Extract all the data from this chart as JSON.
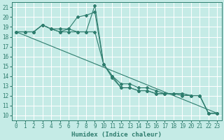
{
  "xlabel": "Humidex (Indice chaleur)",
  "xlim": [
    -0.5,
    23.5
  ],
  "ylim": [
    9.5,
    21.5
  ],
  "xticks": [
    0,
    1,
    2,
    3,
    4,
    5,
    6,
    7,
    8,
    9,
    10,
    11,
    12,
    13,
    14,
    15,
    16,
    17,
    18,
    19,
    20,
    21,
    22,
    23
  ],
  "yticks": [
    10,
    11,
    12,
    13,
    14,
    15,
    16,
    17,
    18,
    19,
    20,
    21
  ],
  "bg_color": "#c5ebe6",
  "grid_color": "#ffffff",
  "line_color": "#2e7d6e",
  "series": [
    {
      "x": [
        0,
        1,
        2,
        3,
        4,
        5,
        6,
        7,
        8,
        9,
        10,
        11,
        12,
        13,
        14,
        15,
        16,
        17,
        18,
        19,
        20,
        21,
        22,
        23
      ],
      "y": [
        18.5,
        18.5,
        18.5,
        19.2,
        18.8,
        18.8,
        18.8,
        18.5,
        18.5,
        21.2,
        15.2,
        13.8,
        12.8,
        12.8,
        12.5,
        12.5,
        12.2,
        12.2,
        12.2,
        12.2,
        12.0,
        12.0,
        10.2,
        10.2
      ]
    },
    {
      "x": [
        0,
        1,
        2,
        3,
        4,
        5,
        6,
        7,
        8,
        9,
        10,
        11,
        12,
        13,
        14,
        15,
        16,
        17,
        18,
        19,
        20,
        21,
        22,
        23
      ],
      "y": [
        18.5,
        18.5,
        18.5,
        19.2,
        18.8,
        18.5,
        18.8,
        20.0,
        20.2,
        20.5,
        15.2,
        14.0,
        13.2,
        13.2,
        12.8,
        12.8,
        12.5,
        12.2,
        12.2,
        12.2,
        12.0,
        12.0,
        10.2,
        10.2
      ]
    },
    {
      "x": [
        0,
        23
      ],
      "y": [
        18.5,
        10.2
      ],
      "no_marker": true
    },
    {
      "x": [
        0,
        1,
        2,
        3,
        4,
        5,
        6,
        7,
        8,
        9,
        10,
        11,
        12,
        13,
        14,
        15,
        16,
        17,
        18,
        19,
        20,
        21,
        22,
        23
      ],
      "y": [
        18.5,
        18.5,
        18.5,
        19.2,
        18.8,
        18.5,
        18.5,
        18.5,
        18.5,
        18.5,
        15.2,
        14.0,
        12.8,
        12.8,
        12.5,
        12.5,
        12.2,
        12.2,
        12.2,
        12.0,
        12.0,
        12.0,
        10.2,
        10.2
      ]
    }
  ],
  "marker": "D",
  "marker_size": 2.0,
  "line_width": 0.8,
  "tick_fontsize": 5.5,
  "xlabel_fontsize": 6.5
}
